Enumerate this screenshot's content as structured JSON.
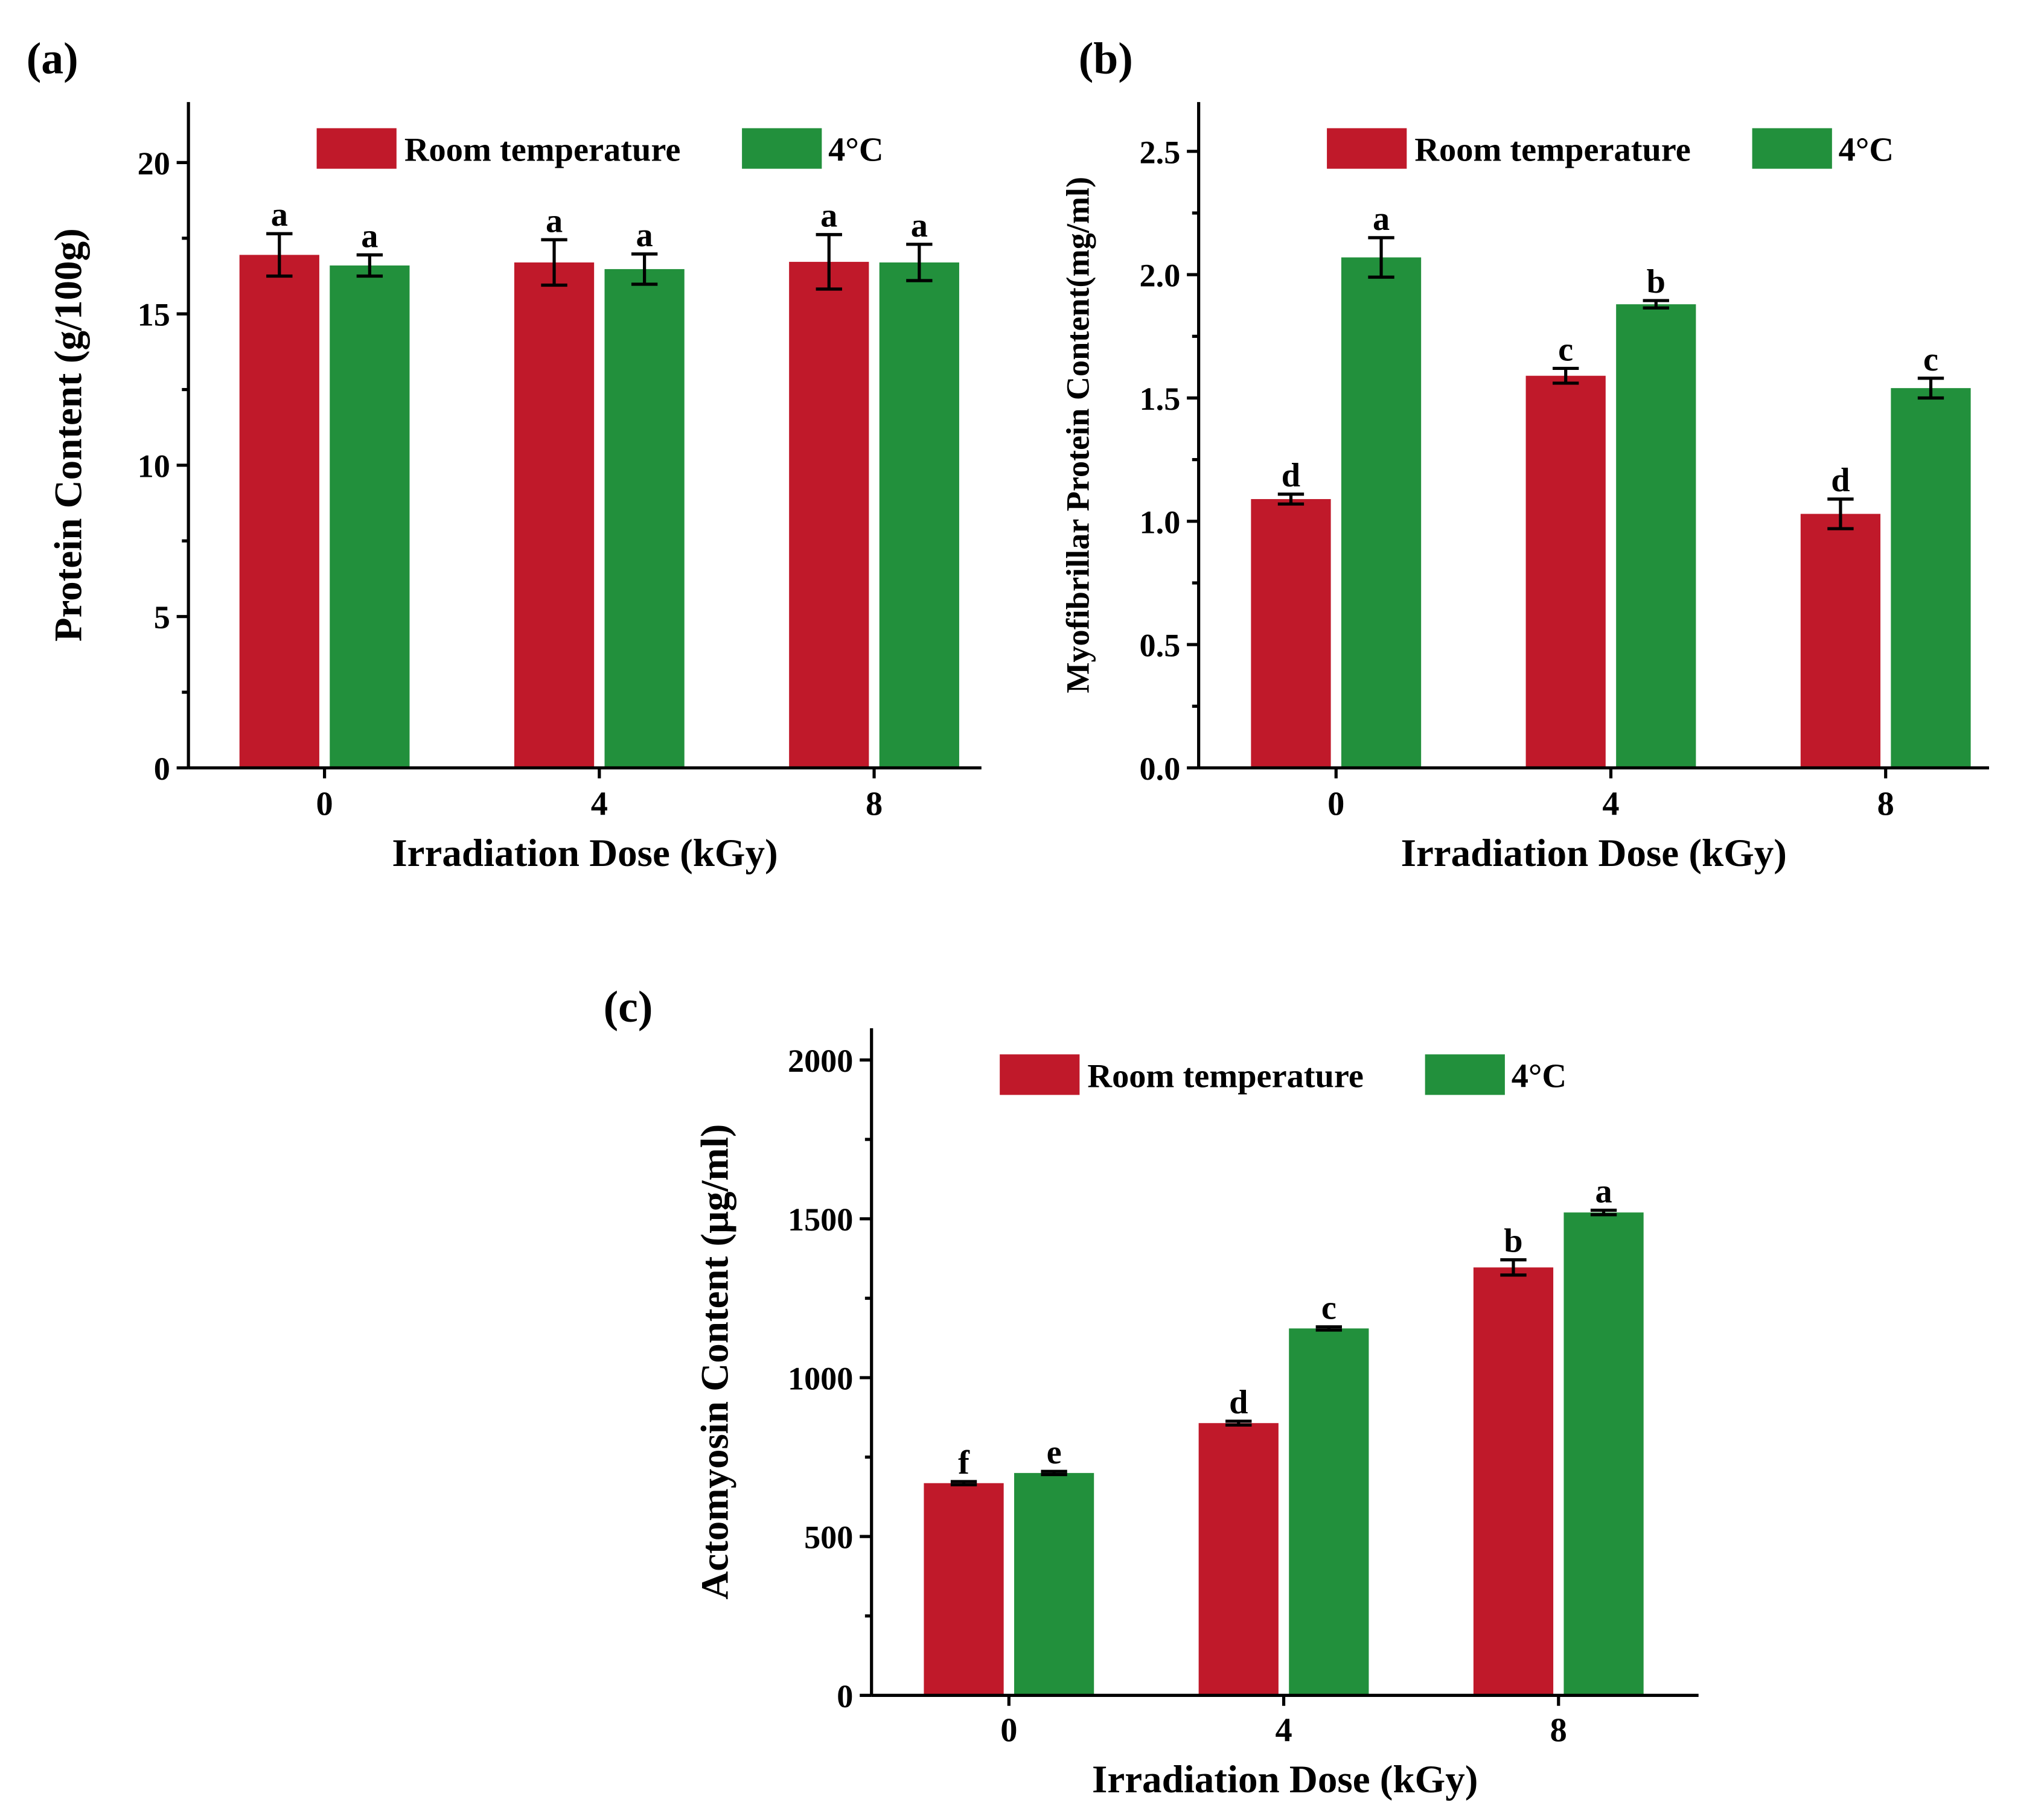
{
  "colors": {
    "room": "#c0192a",
    "cold": "#22903c",
    "axis": "#000000"
  },
  "legend": {
    "room_label": "Room temperature",
    "cold_label": "4°C"
  },
  "chart_data": [
    {
      "type": "bar",
      "panel_label": "(a)",
      "title": "",
      "xlabel": "Irradiation Dose (kGy)",
      "ylabel": "Protein Content (g/100g)",
      "categories": [
        "0",
        "4",
        "8"
      ],
      "ylim": [
        0,
        22
      ],
      "yticks": [
        0,
        5,
        10,
        15,
        20
      ],
      "ytick_labels": [
        "0",
        "5",
        "10",
        "15",
        "20"
      ],
      "legend_position": "top",
      "series": [
        {
          "name": "Room temperature",
          "values": [
            16.95,
            16.7,
            16.72
          ],
          "errors": [
            0.7,
            0.75,
            0.9
          ],
          "letters": [
            "a",
            "a",
            "a"
          ]
        },
        {
          "name": "4°C",
          "values": [
            16.6,
            16.48,
            16.7
          ],
          "errors": [
            0.35,
            0.5,
            0.6
          ],
          "letters": [
            "a",
            "a",
            "a"
          ]
        }
      ]
    },
    {
      "type": "bar",
      "panel_label": "(b)",
      "title": "",
      "xlabel": "Irradiation Dose (kGy)",
      "ylabel": "Myofibrillar Protein Content(mg/ml)",
      "categories": [
        "0",
        "4",
        "8"
      ],
      "ylim": [
        0,
        2.7
      ],
      "yticks": [
        0,
        0.5,
        1.0,
        1.5,
        2.0,
        2.5
      ],
      "ytick_labels": [
        "0.0",
        "0.5",
        "1.0",
        "1.5",
        "2.0",
        "2.5"
      ],
      "legend_position": "top",
      "series": [
        {
          "name": "Room temperature",
          "values": [
            1.09,
            1.59,
            1.03
          ],
          "errors": [
            0.02,
            0.03,
            0.06
          ],
          "letters": [
            "d",
            "c",
            "d"
          ]
        },
        {
          "name": "4°C",
          "values": [
            2.07,
            1.88,
            1.54
          ],
          "errors": [
            0.08,
            0.015,
            0.04
          ],
          "letters": [
            "a",
            "b",
            "c"
          ]
        }
      ]
    },
    {
      "type": "bar",
      "panel_label": "(c)",
      "title": "",
      "xlabel": "Irradiation Dose (kGy)",
      "ylabel": "Actomyosin Content (μg/ml)",
      "categories": [
        "0",
        "4",
        "8"
      ],
      "ylim": [
        0,
        2100
      ],
      "yticks": [
        0,
        500,
        1000,
        1500,
        2000
      ],
      "ytick_labels": [
        "0",
        "500",
        "1000",
        "1500",
        "2000"
      ],
      "legend_position": "top",
      "series": [
        {
          "name": "Room temperature",
          "values": [
            668,
            857,
            1347
          ],
          "errors": [
            5,
            6,
            24
          ],
          "letters": [
            "f",
            "d",
            "b"
          ]
        },
        {
          "name": "4°C",
          "values": [
            700,
            1155,
            1520
          ],
          "errors": [
            5,
            5,
            7
          ],
          "letters": [
            "e",
            "c",
            "a"
          ]
        }
      ]
    }
  ]
}
